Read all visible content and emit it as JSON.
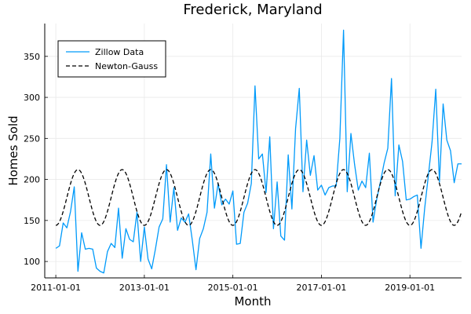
{
  "chart_data": {
    "type": "line",
    "title": "Frederick, Maryland",
    "xlabel": "Month",
    "ylabel": "Homes Sold",
    "x_ticks": [
      "2011-01-01",
      "2013-01-01",
      "2015-01-01",
      "2017-01-01",
      "2019-01-01"
    ],
    "y_ticks": [
      100,
      150,
      200,
      250,
      300,
      350
    ],
    "xlim": [
      "2010-10-01",
      "2020-03-01"
    ],
    "ylim": [
      80,
      390
    ],
    "grid": true,
    "legend_placement": "top-left",
    "start_month": "2011-01",
    "series": [
      {
        "name": "Zillow Data",
        "color": "#009AFA",
        "style": "solid",
        "values": [
          116,
          119,
          147,
          141,
          161,
          191,
          88,
          135,
          115,
          116,
          115,
          92,
          88,
          86,
          112,
          122,
          117,
          165,
          104,
          140,
          127,
          124,
          160,
          100,
          142,
          103,
          91,
          115,
          142,
          152,
          218,
          148,
          190,
          138,
          153,
          148,
          158,
          126,
          90,
          128,
          140,
          160,
          231,
          165,
          195,
          169,
          176,
          170,
          186,
          121,
          122,
          160,
          171,
          195,
          314,
          225,
          231,
          184,
          252,
          140,
          197,
          131,
          126,
          230,
          164,
          262,
          311,
          185,
          248,
          205,
          229,
          187,
          193,
          181,
          190,
          192,
          192,
          250,
          382,
          185,
          256,
          218,
          187,
          198,
          190,
          232,
          148,
          176,
          197,
          220,
          238,
          323,
          180,
          242,
          222,
          175,
          176,
          179,
          181,
          116,
          165,
          205,
          246,
          310,
          197,
          292,
          248,
          235,
          196,
          219,
          219
        ]
      },
      {
        "name": "Newton-Gauss",
        "color": "#000000",
        "style": "dashed",
        "model": "sinusoid",
        "offset": 178,
        "amplitude": 34,
        "period_months": 12,
        "peak_month": 6
      }
    ]
  }
}
